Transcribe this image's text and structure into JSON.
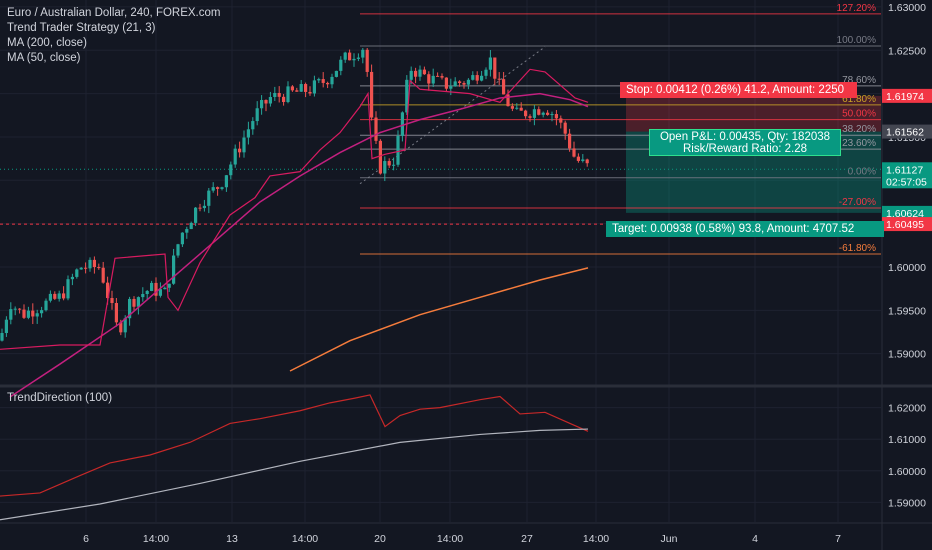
{
  "colors": {
    "background": "#131722",
    "up": "#26a69a",
    "down": "#ef5350",
    "ma200": "#f57c3c",
    "ma50": "#c2207f",
    "trend": "#e91e63",
    "stop": "#f23645",
    "target": "#089981",
    "grid": "#1e2230",
    "axis_text": "#d1d4dc"
  },
  "legend": {
    "title": "Euro / Australian Dollar, 240, FOREX.com",
    "strategy": "Trend Trader Strategy (21, 3)",
    "ma200": "MA (200, close)",
    "ma50": "MA (50, close)"
  },
  "indicator": {
    "title": "TrendDirection (100)"
  },
  "boxes": {
    "stop": "Stop: 0.00412 (0.26%) 41.2, Amount: 2250",
    "open_pnl": "Open P&L: 0.00435, Qty: 182038",
    "risk_reward": "Risk/Reward Ratio: 2.28",
    "target": "Target: 0.00938 (0.58%) 93.8, Amount: 4707.52"
  },
  "chart_data": {
    "type": "candlestick",
    "x_ticks": [
      "6",
      "14:00",
      "13",
      "14:00",
      "20",
      "14:00",
      "27",
      "14:00",
      "Jun",
      "4",
      "7"
    ],
    "y_ticks": [
      "1.63000",
      "1.62500",
      "1.62000",
      "1.61500",
      "1.61000",
      "1.60500",
      "1.60000",
      "1.59500",
      "1.59000"
    ],
    "y_range": [
      1.5865,
      1.6308
    ],
    "price_labels": [
      {
        "text": "1.61974",
        "value": 1.61974,
        "color": "#f23645"
      },
      {
        "text": "1.61562",
        "value": 1.61562,
        "color": "#434651"
      },
      {
        "text": "1.61127",
        "value": 1.61127,
        "color": "#089981",
        "sub": "02:57:05"
      },
      {
        "text": "1.60624",
        "value": 1.60624,
        "color": "#089981"
      },
      {
        "text": "1.60495",
        "value": 1.60495,
        "color": "#f23645"
      }
    ],
    "fib_levels": [
      {
        "label": "127.20%",
        "value": 1.6292,
        "color": "#f23645"
      },
      {
        "label": "100.00%",
        "value": 1.6255,
        "color": "#787b86"
      },
      {
        "label": "78.60%",
        "value": 1.6209,
        "color": "#9598a1"
      },
      {
        "label": "61.80%",
        "value": 1.6187,
        "color": "#c9a227"
      },
      {
        "label": "50.00%",
        "value": 1.617,
        "color": "#f23645"
      },
      {
        "label": "38.20%",
        "value": 1.6152,
        "color": "#9598a1"
      },
      {
        "label": "23.60%",
        "value": 1.6136,
        "color": "#9598a1"
      },
      {
        "label": "0.00%",
        "value": 1.6103,
        "color": "#787b86"
      },
      {
        "label": "-27.00%",
        "value": 1.6068,
        "color": "#f23645"
      },
      {
        "label": "-61.80%",
        "value": 1.6015,
        "color": "#f57c3c"
      }
    ],
    "indicator_y_ticks": [
      "1.62000",
      "1.61000",
      "1.60000",
      "1.59000"
    ],
    "indicator_y_range": [
      1.5838,
      1.6262
    ]
  }
}
